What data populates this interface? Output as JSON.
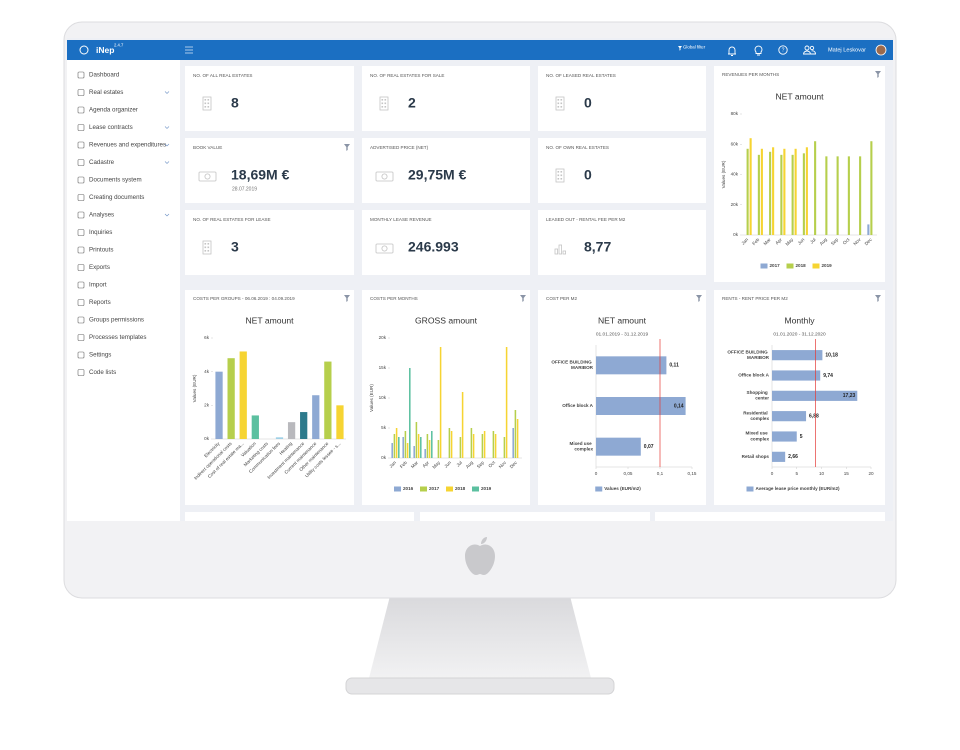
{
  "app": {
    "logo": "iNep",
    "version": "2.4.7",
    "global_filter": "Global filter",
    "user": "Matej Leskovar"
  },
  "sidebar": [
    {
      "label": "Dashboard"
    },
    {
      "label": "Real estates",
      "expandable": true
    },
    {
      "label": "Agenda organizer"
    },
    {
      "label": "Lease contracts",
      "expandable": true
    },
    {
      "label": "Revenues and expenditures",
      "expandable": true
    },
    {
      "label": "Cadastre",
      "expandable": true
    },
    {
      "label": "Documents system"
    },
    {
      "label": "Creating documents"
    },
    {
      "label": "Analyses",
      "expandable": true
    },
    {
      "label": "Inquiries"
    },
    {
      "label": "Printouts"
    },
    {
      "label": "Exports"
    },
    {
      "label": "Import"
    },
    {
      "label": "Reports"
    },
    {
      "label": "Groups permissions"
    },
    {
      "label": "Processes templates"
    },
    {
      "label": "Settings"
    },
    {
      "label": "Code lists"
    }
  ],
  "cards": [
    {
      "title": "NO. OF ALL REAL ESTATES",
      "value": "8",
      "icon": "building"
    },
    {
      "title": "NO. OF REAL ESTATES FOR SALE",
      "value": "2",
      "icon": "building"
    },
    {
      "title": "NO. OF LEASED REAL ESTATES",
      "value": "0",
      "icon": "building"
    },
    {
      "title": "BOOK VALUE",
      "value": "18,69M €",
      "sub": "28.07.2019",
      "icon": "money",
      "filter": true
    },
    {
      "title": "ADVERTISED PRICE (NET)",
      "value": "29,75M €",
      "icon": "money"
    },
    {
      "title": "NO. OF OWN REAL ESTATES",
      "value": "0",
      "icon": "building"
    },
    {
      "title": "NO. OF REAL ESTATES FOR LEASE",
      "value": "3",
      "icon": "building"
    },
    {
      "title": "MONTHLY LEASE REVENUE",
      "value": "246.993",
      "icon": "money"
    },
    {
      "title": "LEASED OUT - RENTAL FEE PER M2",
      "value": "8,77",
      "icon": "chart"
    }
  ],
  "chart_data": [
    {
      "type": "bar",
      "header": "REVENUES PER MONTHS",
      "title": "NET amount",
      "y_label": "Values (EUR)",
      "categories": [
        "Jan",
        "Feb",
        "Mar",
        "Apr",
        "May",
        "Jun",
        "Jul",
        "Aug",
        "Sep",
        "Oct",
        "Nov",
        "Dec"
      ],
      "series": [
        {
          "name": "2017",
          "color": "#8ea9d3",
          "values": [
            null,
            null,
            null,
            null,
            null,
            null,
            null,
            null,
            null,
            null,
            null,
            7000
          ]
        },
        {
          "name": "2018",
          "color": "#b6cf4c",
          "values": [
            57000,
            53000,
            55000,
            53000,
            53000,
            54000,
            62000,
            52000,
            52000,
            52000,
            52000,
            62000
          ]
        },
        {
          "name": "2019",
          "color": "#f6d432",
          "values": [
            64000,
            57000,
            58000,
            57000,
            57000,
            58000,
            null,
            null,
            null,
            null,
            null,
            null
          ]
        }
      ],
      "ylim": [
        0,
        80000
      ],
      "yticks": [
        {
          "value": 0,
          "label": "0k"
        },
        {
          "value": 20000,
          "label": "20k"
        },
        {
          "value": 40000,
          "label": "40k"
        },
        {
          "value": 60000,
          "label": "60k"
        },
        {
          "value": 80000,
          "label": "80k"
        }
      ]
    },
    {
      "type": "bar",
      "header": "COSTS PER GROUPS - 06.06.2019 : 04.09.2019",
      "title": "NET amount",
      "y_label": "Values (EUR)",
      "categories": [
        "Electricity",
        "Indirect operational costs",
        "Cost of real estate ma...",
        "Valuation",
        "Marketing costs",
        "Communication fees",
        "Heating",
        "Investment maintenance",
        "Current maintenance",
        "Other maintenance",
        "Utility costs lessee - s..."
      ],
      "values": [
        4000,
        4800,
        5200,
        1400,
        0,
        100,
        1000,
        1600,
        2600,
        4600,
        2000
      ],
      "colors": [
        "#8ea9d3",
        "#b6cf4c",
        "#f6d432",
        "#5cc0a0",
        "#e0e0e0",
        "#9fd0e6",
        "#b9b9bd",
        "#2d7a8c",
        "#8ea9d3",
        "#b6cf4c",
        "#f6d432"
      ],
      "ylim": [
        0,
        6000
      ],
      "yticks": [
        {
          "value": 0,
          "label": "0k"
        },
        {
          "value": 2000,
          "label": "2k"
        },
        {
          "value": 4000,
          "label": "4k"
        },
        {
          "value": 6000,
          "label": "6k"
        }
      ]
    },
    {
      "type": "bar",
      "header": "COSTS PER MONTHS",
      "title": "GROSS amount",
      "y_label": "Values (EUR)",
      "categories": [
        "Jan",
        "Feb",
        "Mar",
        "Apr",
        "May",
        "Jun",
        "Jul",
        "Aug",
        "Sep",
        "Oct",
        "Nov",
        "Dec"
      ],
      "series": [
        {
          "name": "2016",
          "color": "#8ea9d3",
          "values": [
            2500,
            3500,
            2000,
            1500,
            null,
            null,
            null,
            null,
            null,
            null,
            null,
            5000
          ]
        },
        {
          "name": "2017",
          "color": "#b6cf4c",
          "values": [
            4000,
            4500,
            6000,
            4000,
            3000,
            5000,
            3500,
            5000,
            4000,
            4500,
            3500,
            8000
          ]
        },
        {
          "name": "2018",
          "color": "#f6d432",
          "values": [
            5000,
            2500,
            4000,
            3000,
            18500,
            4500,
            11000,
            4000,
            4500,
            4000,
            18500,
            6500
          ]
        },
        {
          "name": "2019",
          "color": "#5cc0a0",
          "values": [
            3500,
            15000,
            3500,
            4500,
            null,
            null,
            null,
            null,
            null,
            null,
            null,
            null
          ]
        }
      ],
      "ylim": [
        0,
        20000
      ],
      "yticks": [
        {
          "value": 0,
          "label": "0k"
        },
        {
          "value": 5000,
          "label": "5k"
        },
        {
          "value": 10000,
          "label": "10k"
        },
        {
          "value": 15000,
          "label": "15k"
        },
        {
          "value": 20000,
          "label": "20k"
        }
      ]
    },
    {
      "type": "barh",
      "header": "COST PER M2",
      "title": "NET amount",
      "subtitle": "01.01.2019 - 31.12.2019",
      "categories": [
        "OFFICE BUILDING MARIBOR",
        "Office block A",
        "Mixed use complex"
      ],
      "series": [
        {
          "name": "Values (EUR/m2)",
          "color": "#8ea9d3",
          "values": [
            0.11,
            0.14,
            0.07
          ],
          "value_labels": [
            "0,11",
            "0,14",
            "0,07"
          ]
        }
      ],
      "reference": 0.1,
      "reference_color": "#e53935",
      "xlim": [
        0,
        0.15
      ],
      "xticks": [
        0,
        {
          "value": 0.05,
          "label": "0,05"
        },
        {
          "value": 0.1,
          "label": "0,1"
        },
        {
          "value": 0.15,
          "label": "0,15"
        }
      ]
    },
    {
      "type": "barh",
      "header": "RENTS - RENT PRICE PER M2",
      "title": "Monthly",
      "subtitle": "01.01.2020 - 31.12.2020",
      "categories": [
        "OFFICE BUILDING MARIBOR",
        "Office block A",
        "Shopping center",
        "Residential complex",
        "Mixed use complex",
        "Retail shops"
      ],
      "series": [
        {
          "name": "Average lease price monthly (EUR/m2)",
          "color": "#8ea9d3",
          "values": [
            10.18,
            9.74,
            17.23,
            6.88,
            5,
            2.66
          ],
          "value_labels": [
            "10,18",
            "9,74",
            "17,23",
            "6,88",
            "5",
            "2,66"
          ]
        }
      ],
      "reference": 8.77,
      "reference_color": "#e53935",
      "xlim": [
        0,
        20
      ],
      "xticks": [
        0,
        5,
        10,
        15,
        20
      ]
    }
  ]
}
